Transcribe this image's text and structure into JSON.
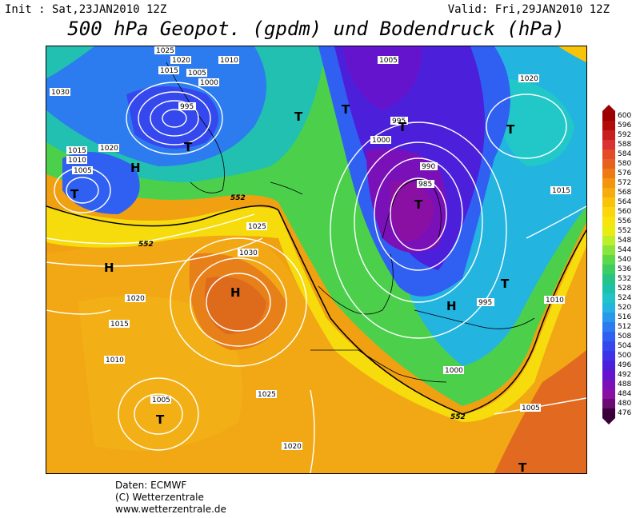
{
  "header": {
    "init": "Init : Sat,23JAN2010 12Z",
    "valid": "Valid: Fri,29JAN2010 12Z",
    "title": "500 hPa Geopot. (gpdm) und Bodendruck (hPa)"
  },
  "legend": {
    "values": [
      600,
      596,
      592,
      588,
      584,
      580,
      576,
      572,
      568,
      564,
      560,
      556,
      552,
      548,
      544,
      540,
      536,
      532,
      528,
      524,
      520,
      516,
      512,
      508,
      504,
      500,
      496,
      492,
      488,
      484,
      480,
      476
    ],
    "colors": [
      "#9c0000",
      "#b40a0a",
      "#c81e1e",
      "#d83232",
      "#e24a28",
      "#e8601e",
      "#ee7a14",
      "#f2960e",
      "#f6ac0c",
      "#f8c40a",
      "#fad60a",
      "#f6e40c",
      "#e8ec10",
      "#bcee2a",
      "#8ae43a",
      "#5cd848",
      "#3ccc62",
      "#26c484",
      "#1ec0a8",
      "#20c4c8",
      "#24b4e0",
      "#2898ec",
      "#2c7cf0",
      "#3060f2",
      "#3448ee",
      "#3c34e6",
      "#4c20da",
      "#6414cc",
      "#7a10b8",
      "#8a10a4",
      "#6a0c74",
      "#3a003a"
    ]
  },
  "map": {
    "isobars": [
      {
        "label": "1025",
        "region": "northwest"
      },
      {
        "label": "1020",
        "region": "northwest"
      },
      {
        "label": "1015",
        "region": "northwest"
      },
      {
        "label": "1010",
        "region": "greenland"
      },
      {
        "label": "1005",
        "region": "greenland"
      },
      {
        "label": "1000",
        "region": "greenland"
      },
      {
        "label": "995",
        "region": "greenland"
      },
      {
        "label": "1030",
        "region": "west"
      },
      {
        "label": "1020",
        "region": "atlantic"
      },
      {
        "label": "1015",
        "region": "atlantic"
      },
      {
        "label": "1010",
        "region": "atlantic"
      },
      {
        "label": "1005",
        "region": "atlantic"
      },
      {
        "label": "1030",
        "region": "azores"
      },
      {
        "label": "1025",
        "region": "azores"
      },
      {
        "label": "1020",
        "region": "azores"
      },
      {
        "label": "1015",
        "region": "southwest"
      },
      {
        "label": "1010",
        "region": "southwest"
      },
      {
        "label": "1005",
        "region": "southwest"
      },
      {
        "label": "1025",
        "region": "iberia"
      },
      {
        "label": "1020",
        "region": "south"
      },
      {
        "label": "1005",
        "region": "scandinavia"
      },
      {
        "label": "1000",
        "region": "scandinavia"
      },
      {
        "label": "995",
        "region": "scandinavia"
      },
      {
        "label": "990",
        "region": "scandinavia"
      },
      {
        "label": "985",
        "region": "scandinavia"
      },
      {
        "label": "1000",
        "region": "central-europe"
      },
      {
        "label": "995",
        "region": "east"
      },
      {
        "label": "1010",
        "region": "east"
      },
      {
        "label": "1015",
        "region": "east"
      },
      {
        "label": "1020",
        "region": "northeast"
      },
      {
        "label": "1005",
        "region": "southeast"
      }
    ],
    "centers": [
      {
        "type": "H"
      },
      {
        "type": "H"
      },
      {
        "type": "H"
      },
      {
        "type": "H"
      },
      {
        "type": "T"
      },
      {
        "type": "T"
      },
      {
        "type": "T"
      },
      {
        "type": "T"
      },
      {
        "type": "T"
      },
      {
        "type": "T"
      },
      {
        "type": "T"
      },
      {
        "type": "T"
      },
      {
        "type": "T"
      },
      {
        "type": "T"
      }
    ],
    "contour_552_label": "552"
  },
  "footer": {
    "line1": "Daten: ECMWF",
    "line2": "(C) Wetterzentrale",
    "line3": "www.wetterzentrale.de"
  }
}
